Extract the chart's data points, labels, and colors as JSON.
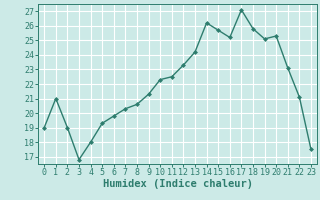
{
  "x": [
    0,
    1,
    2,
    3,
    4,
    5,
    6,
    7,
    8,
    9,
    10,
    11,
    12,
    13,
    14,
    15,
    16,
    17,
    18,
    19,
    20,
    21,
    22,
    23
  ],
  "y": [
    19,
    21,
    19,
    16.8,
    18,
    19.3,
    19.8,
    20.3,
    20.6,
    21.3,
    22.3,
    22.5,
    23.3,
    24.2,
    26.2,
    25.7,
    25.2,
    27.1,
    25.8,
    25.1,
    25.3,
    23.1,
    21.1,
    17.5
  ],
  "line_color": "#2e7d6e",
  "marker": "D",
  "marker_size": 2.0,
  "line_width": 1.0,
  "xlabel": "Humidex (Indice chaleur)",
  "xlim": [
    -0.5,
    23.5
  ],
  "ylim": [
    16.5,
    27.5
  ],
  "yticks": [
    17,
    18,
    19,
    20,
    21,
    22,
    23,
    24,
    25,
    26,
    27
  ],
  "xticks": [
    0,
    1,
    2,
    3,
    4,
    5,
    6,
    7,
    8,
    9,
    10,
    11,
    12,
    13,
    14,
    15,
    16,
    17,
    18,
    19,
    20,
    21,
    22,
    23
  ],
  "background_color": "#cceae7",
  "grid_color": "#ffffff",
  "tick_label_fontsize": 6.0,
  "xlabel_fontsize": 7.5,
  "tick_color": "#2e7d6e",
  "spine_color": "#2e7d6e"
}
